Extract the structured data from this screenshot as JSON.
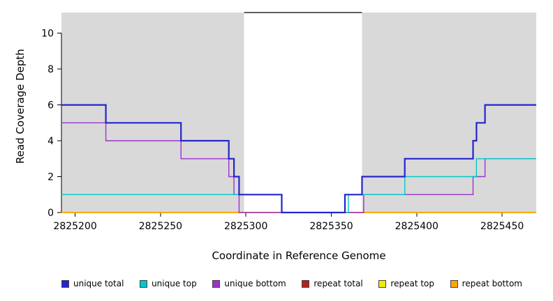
{
  "figure": {
    "xlabel": "Coordinate in Reference Genome",
    "ylabel": "Read Coverage Depth"
  },
  "chart_data": {
    "type": "line",
    "subtype": "step",
    "title": "",
    "xlabel": "Coordinate in Reference Genome",
    "ylabel": "Read Coverage Depth",
    "xlim": [
      2825192,
      2825470
    ],
    "ylim": [
      0,
      11.15
    ],
    "xticks": [
      2825200,
      2825250,
      2825300,
      2825350,
      2825400,
      2825450
    ],
    "yticks": [
      0,
      2,
      4,
      6,
      8,
      10
    ],
    "grid": false,
    "legend_position": "bottom",
    "plot_background": "#ffffff",
    "shaded_region_color": "#d9d9d9",
    "shaded_regions": [
      [
        2825192,
        2825299
      ],
      [
        2825368,
        2825470
      ]
    ],
    "repeat_marker": {
      "x_start": 2825299,
      "x_end": 2825368,
      "y": 11.15,
      "color": "#000000"
    },
    "series": [
      {
        "name": "repeat total",
        "color": "#b22222",
        "width": 1.4,
        "steps": [
          [
            2825192,
            0
          ],
          [
            2825470,
            0
          ]
        ]
      },
      {
        "name": "repeat top",
        "color": "#eded00",
        "width": 1.4,
        "steps": [
          [
            2825192,
            0
          ],
          [
            2825470,
            0
          ]
        ]
      },
      {
        "name": "repeat bottom",
        "color": "#ffa500",
        "width": 1.6,
        "steps": [
          [
            2825192,
            0
          ],
          [
            2825470,
            0
          ]
        ]
      },
      {
        "name": "unique bottom",
        "color": "#9933cc",
        "width": 1.4,
        "steps": [
          [
            2825192,
            5
          ],
          [
            2825218,
            4
          ],
          [
            2825262,
            3
          ],
          [
            2825290,
            2
          ],
          [
            2825293,
            1
          ],
          [
            2825296,
            0
          ],
          [
            2825369,
            1
          ],
          [
            2825433,
            2
          ],
          [
            2825440,
            3
          ],
          [
            2825470,
            3
          ]
        ]
      },
      {
        "name": "unique top",
        "color": "#00c8c8",
        "width": 1.4,
        "steps": [
          [
            2825192,
            1
          ],
          [
            2825321,
            0
          ],
          [
            2825360,
            1
          ],
          [
            2825393,
            2
          ],
          [
            2825435,
            3
          ],
          [
            2825470,
            3
          ]
        ]
      },
      {
        "name": "unique total",
        "color": "#2424cc",
        "width": 2.2,
        "steps": [
          [
            2825192,
            6
          ],
          [
            2825218,
            5
          ],
          [
            2825262,
            4
          ],
          [
            2825290,
            3
          ],
          [
            2825293,
            2
          ],
          [
            2825296,
            1
          ],
          [
            2825321,
            0
          ],
          [
            2825358,
            1
          ],
          [
            2825368,
            2
          ],
          [
            2825393,
            3
          ],
          [
            2825433,
            4
          ],
          [
            2825435,
            5
          ],
          [
            2825440,
            6
          ],
          [
            2825470,
            6
          ]
        ]
      }
    ],
    "legend": [
      {
        "label": "unique total",
        "color": "#2424cc"
      },
      {
        "label": "unique top",
        "color": "#00c8c8"
      },
      {
        "label": "unique bottom",
        "color": "#9933cc"
      },
      {
        "label": "repeat total",
        "color": "#b22222"
      },
      {
        "label": "repeat top",
        "color": "#eded00"
      },
      {
        "label": "repeat bottom",
        "color": "#ffa500"
      }
    ]
  }
}
